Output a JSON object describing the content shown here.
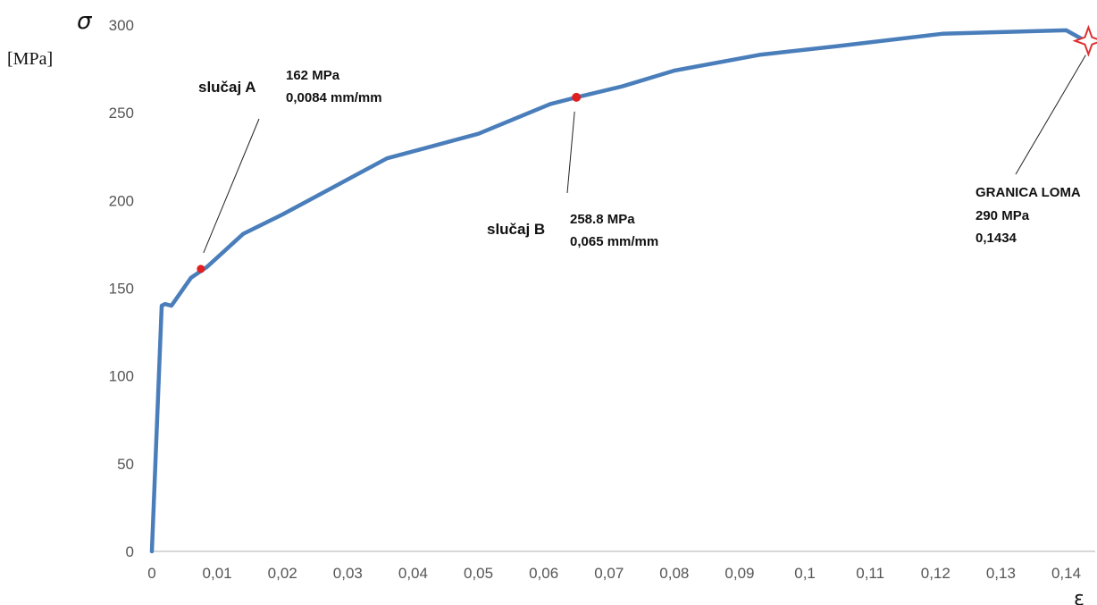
{
  "chart_data": {
    "type": "line",
    "xlabel": "ε",
    "ylabel": "σ",
    "yunit": "[MPa]",
    "xlim": [
      0,
      0.145
    ],
    "ylim": [
      0,
      300
    ],
    "x_ticks": [
      "0",
      "0,01",
      "0,02",
      "0,03",
      "0,04",
      "0,05",
      "0,06",
      "0,07",
      "0,08",
      "0,09",
      "0,1",
      "0,11",
      "0,12",
      "0,13",
      "0,14"
    ],
    "y_ticks": [
      "0",
      "50",
      "100",
      "150",
      "200",
      "250",
      "300"
    ],
    "grid": false,
    "series": [
      {
        "color": "#4a7ebb",
        "x": [
          0,
          0.0015,
          0.002,
          0.003,
          0.006,
          0.0084,
          0.014,
          0.02,
          0.028,
          0.036,
          0.042,
          0.05,
          0.061,
          0.065,
          0.072,
          0.08,
          0.093,
          0.105,
          0.121,
          0.13,
          0.14,
          0.1434
        ],
        "y": [
          0,
          140,
          141,
          140,
          156,
          162,
          181,
          192,
          208,
          224,
          230,
          238,
          255,
          258.8,
          265,
          274,
          283,
          288,
          295,
          296,
          297,
          290
        ]
      }
    ],
    "annotations": [
      {
        "name": "slučaj A",
        "line1": "162 MPa",
        "line2": "0,0084 mm/mm",
        "x": 0.0075,
        "y": 161,
        "color": "#e02020"
      },
      {
        "name": "slučaj B",
        "line1": "258.8 MPa",
        "line2": "0,065 mm/mm",
        "x": 0.065,
        "y": 258.8,
        "color": "#e02020"
      },
      {
        "name": "GRANICA LOMA",
        "line1": "290 MPa",
        "line2": "0,1434",
        "x": 0.1434,
        "y": 291,
        "color": "#e03030"
      }
    ]
  }
}
